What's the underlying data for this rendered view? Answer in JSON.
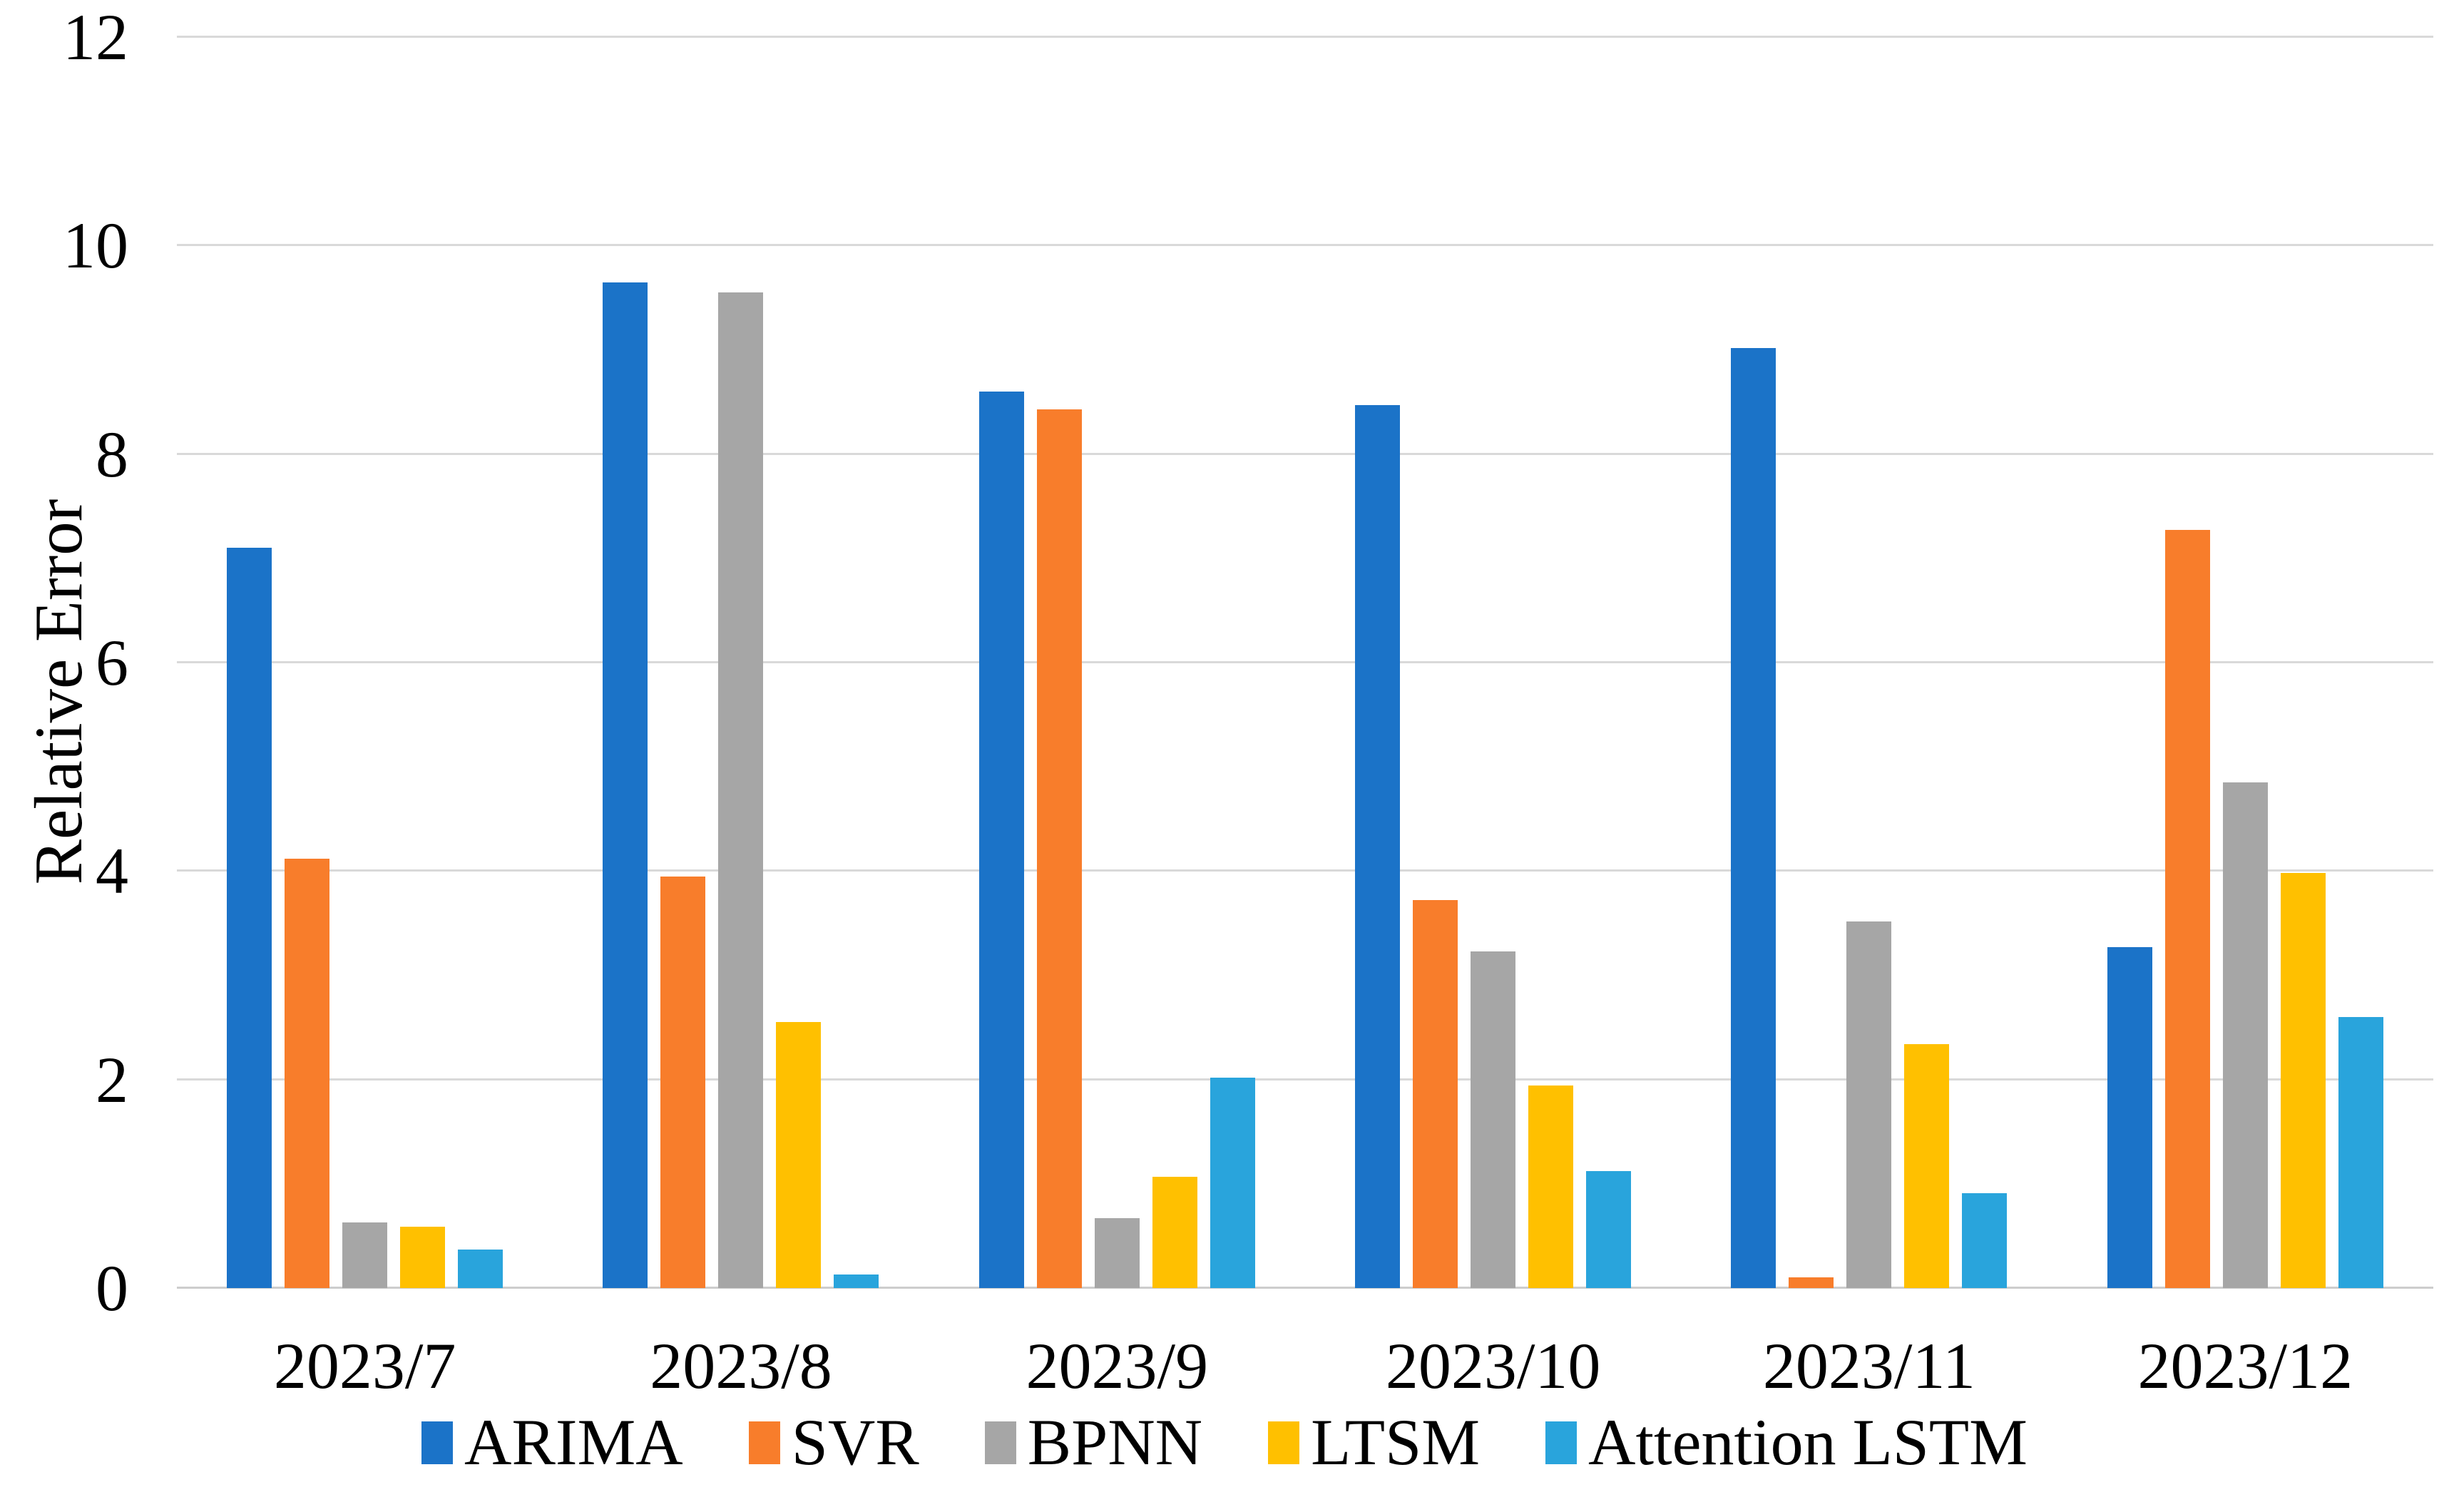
{
  "chart_data": {
    "type": "bar",
    "title": "",
    "xlabel": "",
    "ylabel": "Relative Error",
    "ylim": [
      0,
      12
    ],
    "yticks": [
      0,
      2,
      4,
      6,
      8,
      10,
      12
    ],
    "grid": true,
    "grid_color": "#D9D9D9",
    "baseline_color": "#CDCDCD",
    "legend_position": "bottom",
    "categories": [
      "2023/7",
      "2023/8",
      "2023/9",
      "2023/10",
      "2023/11",
      "2023/12"
    ],
    "series": [
      {
        "name": "ARIMA",
        "color": "#1B73C8",
        "values": [
          7.1,
          9.65,
          8.6,
          8.47,
          9.02,
          3.27
        ]
      },
      {
        "name": "SVR",
        "color": "#F87D2B",
        "values": [
          4.12,
          3.95,
          8.43,
          3.72,
          0.1,
          7.27
        ]
      },
      {
        "name": "BPNN",
        "color": "#A6A6A6",
        "values": [
          0.63,
          9.55,
          0.67,
          3.23,
          3.52,
          4.85
        ]
      },
      {
        "name": "LTSM",
        "color": "#FFC000",
        "values": [
          0.59,
          2.55,
          1.07,
          1.94,
          2.34,
          3.98
        ]
      },
      {
        "name": "Attention LSTM",
        "color": "#29A4DC",
        "values": [
          0.37,
          0.13,
          2.02,
          1.12,
          0.91,
          2.6
        ]
      }
    ]
  }
}
